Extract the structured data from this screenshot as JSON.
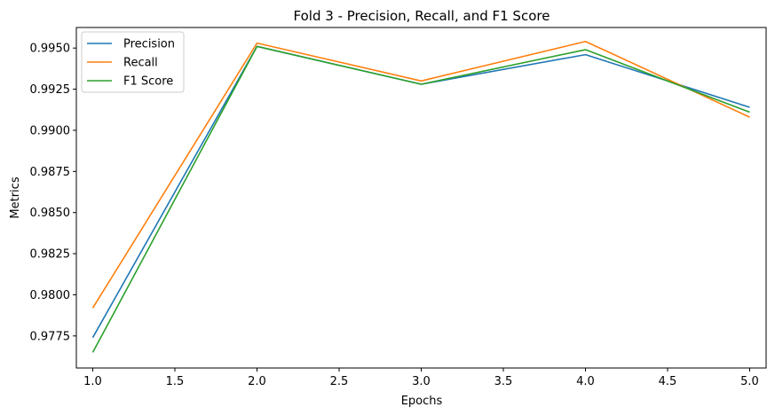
{
  "chart_data": {
    "type": "line",
    "title": "Fold 3 - Precision, Recall, and F1 Score",
    "xlabel": "Epochs",
    "ylabel": "Metrics",
    "x": [
      1.0,
      2.0,
      3.0,
      4.0,
      5.0
    ],
    "xlim": [
      0.9,
      5.1
    ],
    "ylim": [
      0.97555,
      0.99625
    ],
    "xticks": [
      1.0,
      1.5,
      2.0,
      2.5,
      3.0,
      3.5,
      4.0,
      4.5,
      5.0
    ],
    "xtick_labels": [
      "1.0",
      "1.5",
      "2.0",
      "2.5",
      "3.0",
      "3.5",
      "4.0",
      "4.5",
      "5.0"
    ],
    "yticks": [
      0.9775,
      0.98,
      0.9825,
      0.985,
      0.9875,
      0.99,
      0.9925,
      0.995
    ],
    "ytick_labels": [
      "0.9775",
      "0.9800",
      "0.9825",
      "0.9850",
      "0.9875",
      "0.9900",
      "0.9925",
      "0.9950"
    ],
    "grid": false,
    "legend_position": "upper-left",
    "series": [
      {
        "name": "Precision",
        "color": "#1f77b4",
        "values": [
          0.9774,
          0.9951,
          0.9928,
          0.9946,
          0.9914
        ]
      },
      {
        "name": "Recall",
        "color": "#ff7f0e",
        "values": [
          0.9792,
          0.9953,
          0.993,
          0.9954,
          0.9908
        ]
      },
      {
        "name": "F1 Score",
        "color": "#2ca02c",
        "values": [
          0.9765,
          0.9951,
          0.9928,
          0.9949,
          0.9911
        ]
      }
    ]
  }
}
